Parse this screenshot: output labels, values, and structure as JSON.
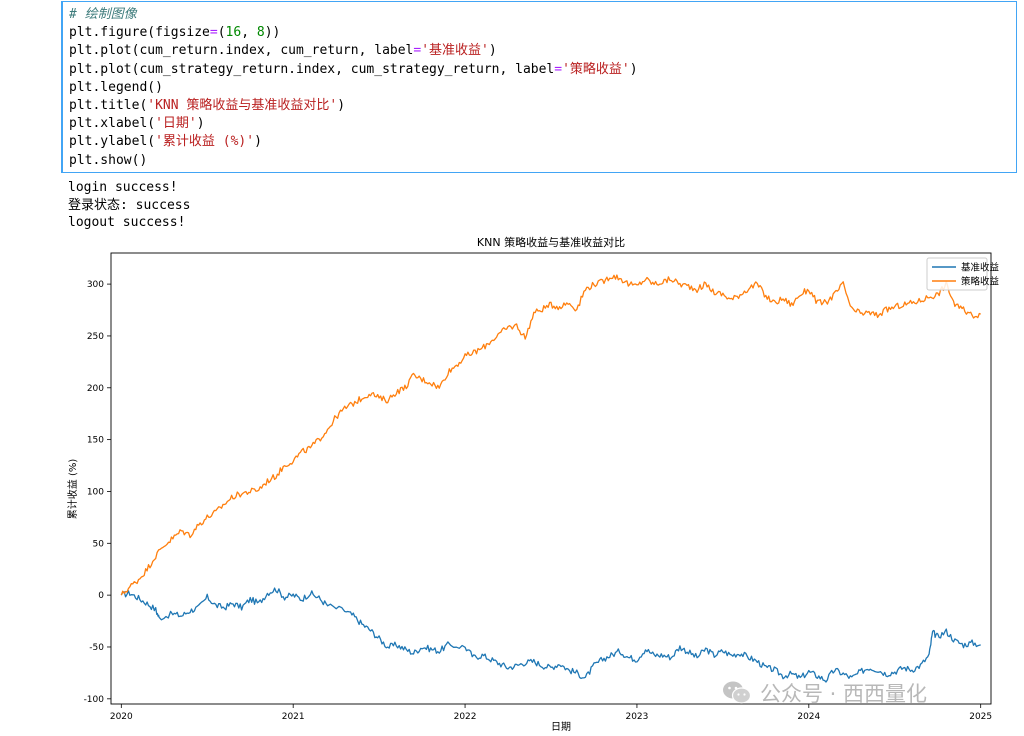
{
  "code": {
    "lines": [
      [
        {
          "t": "# 绘制图像",
          "c": "cm"
        }
      ],
      [
        {
          "t": "plt.figure(figsize"
        },
        {
          "t": "=",
          "c": "op"
        },
        {
          "t": "("
        },
        {
          "t": "16",
          "c": "num"
        },
        {
          "t": ", "
        },
        {
          "t": "8",
          "c": "num"
        },
        {
          "t": "))"
        }
      ],
      [
        {
          "t": "plt.plot(cum_return.index, cum_return, label"
        },
        {
          "t": "=",
          "c": "op"
        },
        {
          "t": "'基准收益'",
          "c": "str"
        },
        {
          "t": ")"
        }
      ],
      [
        {
          "t": "plt.plot(cum_strategy_return.index, cum_strategy_return, label"
        },
        {
          "t": "=",
          "c": "op"
        },
        {
          "t": "'策略收益'",
          "c": "str"
        },
        {
          "t": ")"
        }
      ],
      [
        {
          "t": "plt.legend()"
        }
      ],
      [
        {
          "t": "plt.title("
        },
        {
          "t": "'KNN 策略收益与基准收益对比'",
          "c": "str"
        },
        {
          "t": ")"
        }
      ],
      [
        {
          "t": "plt.xlabel("
        },
        {
          "t": "'日期'",
          "c": "str"
        },
        {
          "t": ")"
        }
      ],
      [
        {
          "t": "plt.ylabel("
        },
        {
          "t": "'累计收益 (%)'",
          "c": "str"
        },
        {
          "t": ")"
        }
      ],
      [
        {
          "t": "plt.show()"
        }
      ]
    ]
  },
  "output": {
    "lines": [
      "login success!",
      "登录状态: success",
      "logout success!"
    ]
  },
  "chart_data": {
    "type": "line",
    "title": "KNN 策略收益与基准收益对比",
    "xlabel": "日期",
    "ylabel": "累计收益 (%)",
    "xlim": [
      2019.94,
      2025.06
    ],
    "ylim": [
      -105,
      330
    ],
    "xticks": [
      2020,
      2021,
      2022,
      2023,
      2024,
      2025
    ],
    "yticks": [
      -100,
      -50,
      0,
      50,
      100,
      150,
      200,
      250,
      300
    ],
    "legend_position": "top-right",
    "series": [
      {
        "name": "基准收益",
        "color": "#1f77b4",
        "x": [
          2020.0,
          2020.05,
          2020.1,
          2020.15,
          2020.2,
          2020.22,
          2020.3,
          2020.35,
          2020.4,
          2020.45,
          2020.5,
          2020.55,
          2020.6,
          2020.65,
          2020.7,
          2020.75,
          2020.8,
          2020.85,
          2020.9,
          2020.95,
          2021.0,
          2021.05,
          2021.1,
          2021.15,
          2021.2,
          2021.3,
          2021.35,
          2021.4,
          2021.45,
          2021.5,
          2021.55,
          2021.6,
          2021.65,
          2021.7,
          2021.75,
          2021.8,
          2021.85,
          2021.9,
          2022.0,
          2022.05,
          2022.1,
          2022.15,
          2022.2,
          2022.25,
          2022.3,
          2022.35,
          2022.4,
          2022.45,
          2022.5,
          2022.55,
          2022.6,
          2022.65,
          2022.7,
          2022.75,
          2022.8,
          2022.85,
          2022.9,
          2022.95,
          2023.0,
          2023.05,
          2023.1,
          2023.15,
          2023.2,
          2023.25,
          2023.3,
          2023.35,
          2023.4,
          2023.45,
          2023.5,
          2023.55,
          2023.6,
          2023.65,
          2023.7,
          2023.75,
          2023.8,
          2023.85,
          2023.9,
          2023.95,
          2024.0,
          2024.05,
          2024.1,
          2024.15,
          2024.2,
          2024.25,
          2024.3,
          2024.35,
          2024.4,
          2024.45,
          2024.5,
          2024.55,
          2024.6,
          2024.65,
          2024.7,
          2024.72,
          2024.75,
          2024.8,
          2024.85,
          2024.9,
          2024.95,
          2025.0
        ],
        "y": [
          0,
          2,
          -3,
          -8,
          -14,
          -22,
          -18,
          -20,
          -15,
          -12,
          -2,
          -10,
          -12,
          -8,
          -12,
          -4,
          -8,
          2,
          6,
          -2,
          0,
          -4,
          2,
          -3,
          -10,
          -15,
          -20,
          -28,
          -34,
          -42,
          -50,
          -48,
          -52,
          -56,
          -50,
          -52,
          -54,
          -48,
          -50,
          -60,
          -58,
          -62,
          -66,
          -70,
          -68,
          -65,
          -64,
          -68,
          -70,
          -66,
          -72,
          -75,
          -80,
          -68,
          -62,
          -58,
          -54,
          -60,
          -62,
          -52,
          -58,
          -58,
          -60,
          -50,
          -55,
          -60,
          -52,
          -58,
          -54,
          -58,
          -56,
          -60,
          -64,
          -70,
          -72,
          -78,
          -76,
          -80,
          -74,
          -78,
          -82,
          -72,
          -76,
          -80,
          -74,
          -70,
          -72,
          -76,
          -74,
          -70,
          -72,
          -68,
          -58,
          -36,
          -40,
          -35,
          -44,
          -48,
          -46,
          -48
        ]
      },
      {
        "name": "策略收益",
        "color": "#ff7f0e",
        "x": [
          2020.0,
          2020.05,
          2020.1,
          2020.15,
          2020.2,
          2020.25,
          2020.3,
          2020.35,
          2020.4,
          2020.45,
          2020.5,
          2020.55,
          2020.6,
          2020.65,
          2020.7,
          2020.75,
          2020.8,
          2020.85,
          2020.9,
          2020.95,
          2021.0,
          2021.05,
          2021.1,
          2021.15,
          2021.2,
          2021.25,
          2021.3,
          2021.35,
          2021.4,
          2021.45,
          2021.5,
          2021.55,
          2021.6,
          2021.65,
          2021.7,
          2021.75,
          2021.8,
          2021.85,
          2021.9,
          2021.95,
          2022.0,
          2022.05,
          2022.1,
          2022.15,
          2022.2,
          2022.25,
          2022.3,
          2022.35,
          2022.4,
          2022.45,
          2022.5,
          2022.55,
          2022.6,
          2022.65,
          2022.7,
          2022.75,
          2022.8,
          2022.85,
          2022.9,
          2022.95,
          2023.0,
          2023.05,
          2023.1,
          2023.15,
          2023.2,
          2023.25,
          2023.3,
          2023.35,
          2023.4,
          2023.45,
          2023.5,
          2023.55,
          2023.6,
          2023.65,
          2023.7,
          2023.75,
          2023.8,
          2023.85,
          2023.9,
          2023.95,
          2024.0,
          2024.05,
          2024.1,
          2024.15,
          2024.2,
          2024.25,
          2024.3,
          2024.35,
          2024.4,
          2024.45,
          2024.5,
          2024.55,
          2024.6,
          2024.65,
          2024.7,
          2024.75,
          2024.8,
          2024.85,
          2024.9,
          2024.95,
          2025.0
        ],
        "y": [
          0,
          8,
          15,
          25,
          38,
          48,
          55,
          62,
          58,
          68,
          75,
          80,
          88,
          95,
          98,
          100,
          102,
          110,
          115,
          125,
          130,
          138,
          142,
          150,
          160,
          172,
          180,
          185,
          190,
          195,
          190,
          188,
          196,
          200,
          212,
          208,
          205,
          200,
          215,
          222,
          230,
          234,
          238,
          245,
          252,
          258,
          260,
          248,
          272,
          276,
          280,
          278,
          282,
          276,
          295,
          300,
          302,
          308,
          306,
          300,
          298,
          305,
          300,
          302,
          305,
          300,
          298,
          295,
          300,
          292,
          290,
          285,
          290,
          296,
          300,
          288,
          282,
          286,
          280,
          290,
          295,
          282,
          282,
          290,
          300,
          275,
          272,
          272,
          270,
          275,
          278,
          280,
          282,
          284,
          288,
          290,
          300,
          280,
          275,
          270,
          271
        ]
      }
    ]
  },
  "watermark": {
    "text": "公众号 · 西西量化",
    "icon": "wechat-icon"
  }
}
